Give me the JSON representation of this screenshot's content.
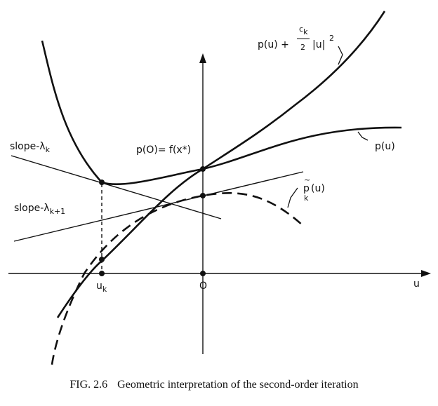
{
  "diagram": {
    "curves": {
      "penalized": "p(u) + ",
      "penalized_ck": "c",
      "penalized_ck_sub": "k",
      "penalized_den": "2",
      "penalized_tail": "|u|",
      "penalized_exp": "2",
      "primal": "p(u)",
      "approx_main": "p",
      "approx_tilde": "~",
      "approx_sub": "k",
      "approx_arg": "(u)"
    },
    "points": {
      "intercept": "p(O)= f(x*)"
    },
    "lines": {
      "slope_k": "slope-λ",
      "slope_k_sub": "k",
      "slope_k1": "slope-λ",
      "slope_k1_sub": "k+1"
    },
    "axis": {
      "x_label": "u",
      "origin": "O",
      "uk_main": "u",
      "uk_sub": "k"
    }
  },
  "caption": {
    "number": "FIG. 2.6",
    "text": "Geometric interpretation of the second-order iteration"
  }
}
